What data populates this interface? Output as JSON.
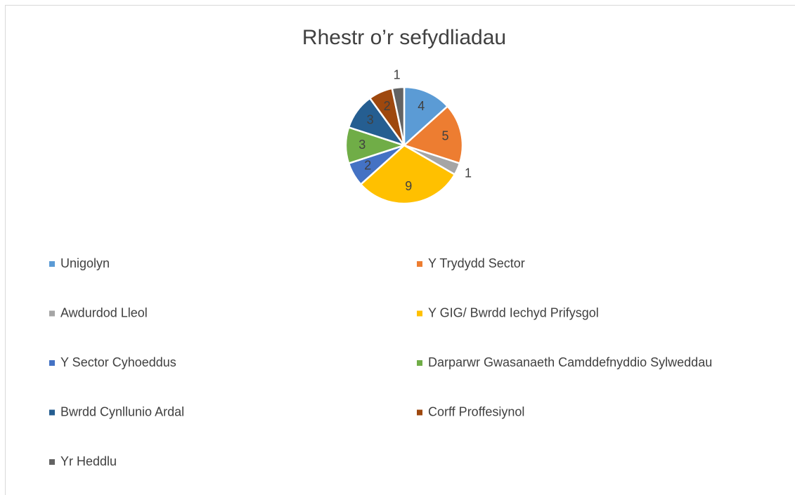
{
  "chart_data": {
    "type": "pie",
    "title": "Rhestr o’r sefydliadau",
    "categories": [
      "Unigolyn",
      "Y Trydydd Sector",
      "Awdurdod Lleol",
      "Y GIG/ Bwrdd Iechyd Prifysgol",
      "Y Sector Cyhoeddus",
      "Darparwr Gwasanaeth Camddefnyddio Sylweddau",
      "Bwrdd Cynllunio Ardal",
      "Corff Proffesiynol",
      "Yr Heddlu"
    ],
    "values": [
      4,
      5,
      1,
      9,
      2,
      3,
      3,
      2,
      1
    ],
    "colors": [
      "#5b9bd5",
      "#ed7d31",
      "#a5a5a5",
      "#ffc000",
      "#4472c4",
      "#70ad47",
      "#255e91",
      "#9e480e",
      "#636363"
    ],
    "legend": "bottom"
  }
}
